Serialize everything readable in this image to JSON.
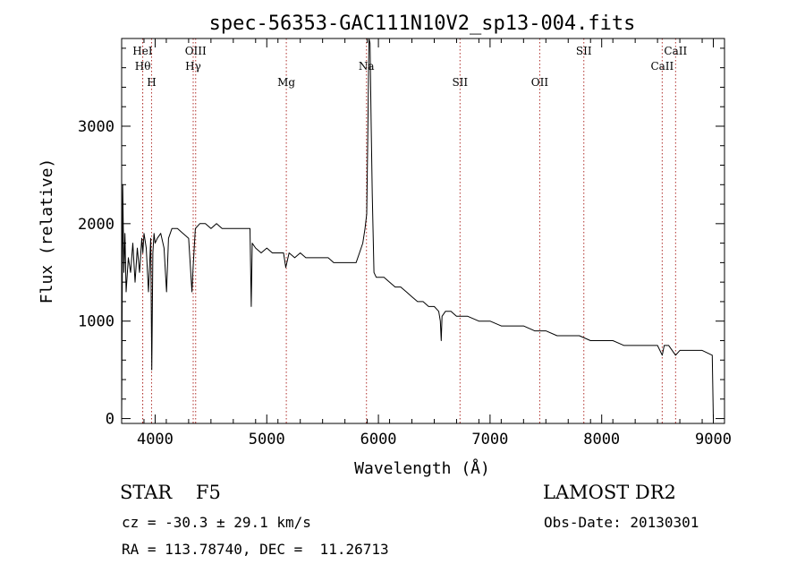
{
  "chart_data": {
    "type": "line",
    "title": "spec-56353-GAC111N10V2_sp13-004.fits",
    "xlabel": "Wavelength (Å)",
    "ylabel": "Flux (relative)",
    "xlim": [
      3700,
      9100
    ],
    "ylim": [
      -50,
      3900
    ],
    "x_ticks": [
      4000,
      5000,
      6000,
      7000,
      8000,
      9000
    ],
    "y_ticks": [
      0,
      1000,
      2000,
      3000
    ],
    "series": [
      {
        "color": "#000000",
        "x": [
          3700,
          3710,
          3720,
          3730,
          3740,
          3760,
          3780,
          3800,
          3820,
          3840,
          3860,
          3880,
          3890,
          3900,
          3920,
          3940,
          3960,
          3970,
          3980,
          3990,
          4000,
          4020,
          4050,
          4080,
          4102,
          4120,
          4150,
          4200,
          4250,
          4300,
          4330,
          4340,
          4360,
          4400,
          4450,
          4500,
          4550,
          4600,
          4650,
          4700,
          4750,
          4800,
          4850,
          4861,
          4870,
          4900,
          4950,
          5000,
          5050,
          5100,
          5150,
          5170,
          5200,
          5250,
          5300,
          5350,
          5400,
          5450,
          5500,
          5550,
          5600,
          5650,
          5700,
          5750,
          5800,
          5830,
          5860,
          5880,
          5895,
          5905,
          5915,
          5925,
          5935,
          5945,
          5960,
          5980,
          6000,
          6050,
          6100,
          6150,
          6200,
          6250,
          6300,
          6350,
          6400,
          6450,
          6500,
          6540,
          6555,
          6563,
          6570,
          6600,
          6650,
          6700,
          6800,
          6900,
          7000,
          7100,
          7200,
          7300,
          7400,
          7500,
          7600,
          7700,
          7800,
          7900,
          8000,
          8100,
          8200,
          8300,
          8400,
          8500,
          8542,
          8560,
          8600,
          8662,
          8700,
          8800,
          8900,
          8990,
          9000
        ],
        "y": [
          0,
          2400,
          1500,
          1900,
          1300,
          1650,
          1500,
          1800,
          1400,
          1750,
          1500,
          1850,
          1700,
          1900,
          1750,
          1300,
          1850,
          500,
          1700,
          1900,
          1800,
          1850,
          1900,
          1750,
          1300,
          1850,
          1950,
          1950,
          1900,
          1850,
          1300,
          1550,
          1950,
          2000,
          2000,
          1950,
          2000,
          1950,
          1950,
          1950,
          1950,
          1950,
          1950,
          1150,
          1800,
          1750,
          1700,
          1750,
          1700,
          1700,
          1700,
          1550,
          1700,
          1650,
          1700,
          1650,
          1650,
          1650,
          1650,
          1650,
          1600,
          1600,
          1600,
          1600,
          1600,
          1700,
          1800,
          1950,
          2100,
          2900,
          3900,
          3850,
          3000,
          2300,
          1500,
          1450,
          1450,
          1450,
          1400,
          1350,
          1350,
          1300,
          1250,
          1200,
          1200,
          1150,
          1150,
          1100,
          1000,
          800,
          1050,
          1100,
          1100,
          1050,
          1050,
          1000,
          1000,
          950,
          950,
          950,
          900,
          900,
          850,
          850,
          850,
          800,
          800,
          800,
          750,
          750,
          750,
          750,
          650,
          750,
          750,
          650,
          700,
          700,
          700,
          650,
          0
        ]
      }
    ],
    "lines": [
      {
        "label": "HeI",
        "x": 3888,
        "row": 1
      },
      {
        "label": "Hθ",
        "x": 3889,
        "row": 2
      },
      {
        "label": "H",
        "x": 3968,
        "row": 3
      },
      {
        "label": "OIII",
        "x": 4363,
        "row": 1
      },
      {
        "label": "Hγ",
        "x": 4341,
        "row": 2
      },
      {
        "label": "Mg",
        "x": 5175,
        "row": 3
      },
      {
        "label": "Na",
        "x": 5893,
        "row": 2
      },
      {
        "label": "SII",
        "x": 6731,
        "row": 3
      },
      {
        "label": "OII",
        "x": 7445,
        "row": 3
      },
      {
        "label": "SII",
        "x": 7840,
        "row": 1
      },
      {
        "label": "CaII",
        "x": 8542,
        "row": 2
      },
      {
        "label": "CaII",
        "x": 8662,
        "row": 1
      }
    ],
    "grid": false,
    "line_marker_color": "#b0302c"
  },
  "footer": {
    "object_type": "STAR    F5",
    "survey": "LAMOST DR2",
    "cz": "cz = -30.3 ± 29.1 km/s",
    "obs_date": "Obs-Date: 20130301",
    "radec": "RA = 113.78740, DEC =  11.26713"
  }
}
